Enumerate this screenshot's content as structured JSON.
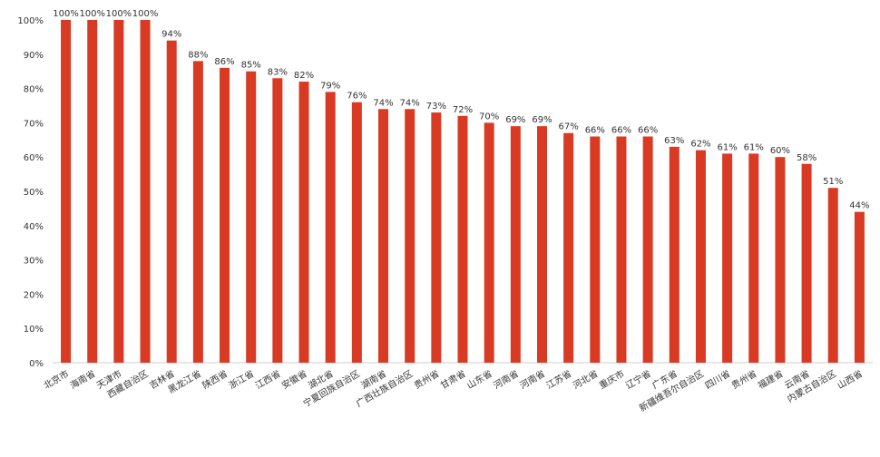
{
  "chart_data": {
    "type": "bar",
    "title": "",
    "xlabel": "",
    "ylabel": "",
    "ylim": [
      0,
      100
    ],
    "yticks": [
      "0%",
      "10%",
      "20%",
      "30%",
      "40%",
      "50%",
      "60%",
      "70%",
      "80%",
      "90%",
      "100%"
    ],
    "grid": false,
    "legend": "none",
    "bar_color": "#d93a23",
    "categories": [
      "北京市",
      "海南省",
      "天津市",
      "西藏自治区",
      "吉林省",
      "黑龙江省",
      "陕西省",
      "浙江省",
      "江西省",
      "安徽省",
      "湖北省",
      "宁夏回族自治区",
      "湖南省",
      "广西壮族自治区",
      "贵州省",
      "甘肃省",
      "山东省",
      "河南省",
      "河南省",
      "江苏省",
      "河北省",
      "重庆市",
      "辽宁省",
      "广东省",
      "新疆维吾尔自治区",
      "四川省",
      "贵州省",
      "福建省",
      "云南省",
      "内蒙古自治区",
      "山西省"
    ],
    "values": [
      100,
      100,
      100,
      100,
      94,
      88,
      86,
      85,
      83,
      82,
      79,
      76,
      74,
      74,
      73,
      72,
      70,
      69,
      69,
      67,
      66,
      66,
      66,
      63,
      62,
      61,
      61,
      60,
      58,
      51,
      44
    ],
    "data_labels": [
      "100%",
      "100%",
      "100%",
      "100%",
      "94%",
      "88%",
      "86%",
      "85%",
      "83%",
      "82%",
      "79%",
      "76%",
      "74%",
      "74%",
      "73%",
      "72%",
      "70%",
      "69%",
      "69%",
      "67%",
      "66%",
      "66%",
      "66%",
      "63%",
      "62%",
      "61%",
      "61%",
      "60%",
      "58%",
      "51%",
      "44%"
    ]
  }
}
